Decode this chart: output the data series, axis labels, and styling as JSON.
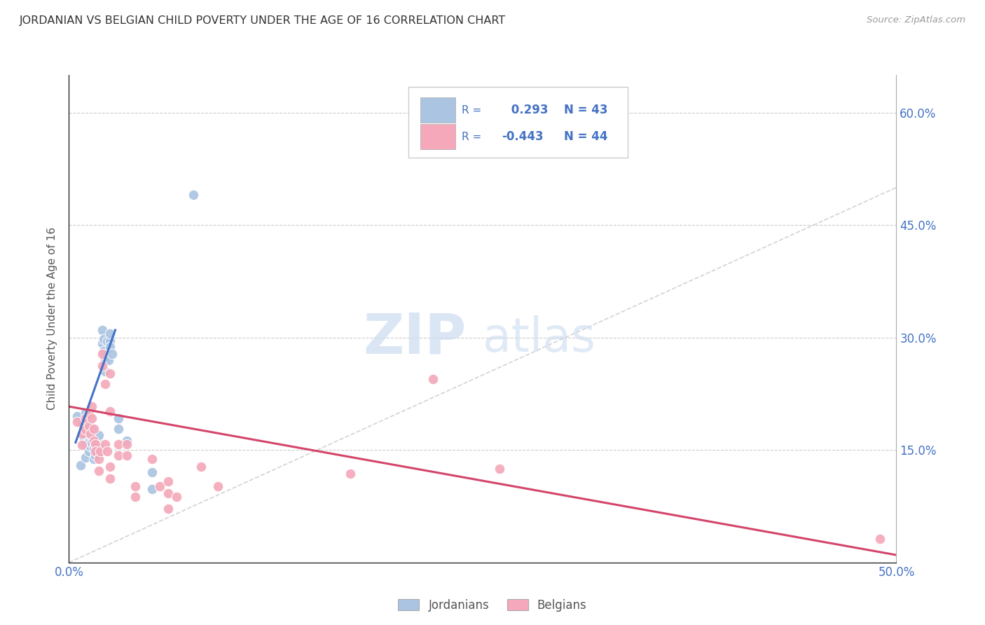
{
  "title": "JORDANIAN VS BELGIAN CHILD POVERTY UNDER THE AGE OF 16 CORRELATION CHART",
  "source": "Source: ZipAtlas.com",
  "ylabel": "Child Poverty Under the Age of 16",
  "xlim": [
    0.0,
    0.5
  ],
  "ylim": [
    0.0,
    0.65
  ],
  "xticks": [
    0.0,
    0.1,
    0.2,
    0.3,
    0.4,
    0.5
  ],
  "yticks": [
    0.15,
    0.3,
    0.45,
    0.6
  ],
  "ytick_labels": [
    "15.0%",
    "30.0%",
    "45.0%",
    "60.0%"
  ],
  "xtick_labels": [
    "0.0%",
    "",
    "",
    "",
    "",
    "50.0%"
  ],
  "jordan_color": "#aac4e2",
  "belgian_color": "#f4a8ba",
  "jordan_R": 0.293,
  "jordan_N": 43,
  "belgian_R": -0.443,
  "belgian_N": 44,
  "jordan_line_color": "#4472c4",
  "belgian_line_color": "#d4456a",
  "diagonal_color": "#c0c0c0",
  "watermark_ZIP": "ZIP",
  "watermark_atlas": "atlas",
  "background_color": "#ffffff",
  "tick_color": "#4472c4",
  "jordan_points": [
    [
      0.005,
      0.195
    ],
    [
      0.007,
      0.13
    ],
    [
      0.008,
      0.185
    ],
    [
      0.009,
      0.165
    ],
    [
      0.01,
      0.2
    ],
    [
      0.01,
      0.175
    ],
    [
      0.01,
      0.158
    ],
    [
      0.01,
      0.14
    ],
    [
      0.011,
      0.185
    ],
    [
      0.011,
      0.17
    ],
    [
      0.012,
      0.16
    ],
    [
      0.012,
      0.148
    ],
    [
      0.013,
      0.17
    ],
    [
      0.013,
      0.155
    ],
    [
      0.014,
      0.178
    ],
    [
      0.014,
      0.16
    ],
    [
      0.015,
      0.168
    ],
    [
      0.015,
      0.152
    ],
    [
      0.015,
      0.138
    ],
    [
      0.016,
      0.158
    ],
    [
      0.016,
      0.143
    ],
    [
      0.017,
      0.162
    ],
    [
      0.018,
      0.17
    ],
    [
      0.018,
      0.155
    ],
    [
      0.019,
      0.148
    ],
    [
      0.02,
      0.31
    ],
    [
      0.02,
      0.292
    ],
    [
      0.021,
      0.298
    ],
    [
      0.021,
      0.282
    ],
    [
      0.022,
      0.27
    ],
    [
      0.022,
      0.255
    ],
    [
      0.023,
      0.295
    ],
    [
      0.024,
      0.27
    ],
    [
      0.025,
      0.295
    ],
    [
      0.025,
      0.305
    ],
    [
      0.025,
      0.288
    ],
    [
      0.026,
      0.278
    ],
    [
      0.03,
      0.192
    ],
    [
      0.03,
      0.178
    ],
    [
      0.035,
      0.162
    ],
    [
      0.05,
      0.12
    ],
    [
      0.05,
      0.098
    ],
    [
      0.075,
      0.49
    ]
  ],
  "belgian_points": [
    [
      0.005,
      0.188
    ],
    [
      0.008,
      0.172
    ],
    [
      0.008,
      0.157
    ],
    [
      0.01,
      0.192
    ],
    [
      0.01,
      0.177
    ],
    [
      0.012,
      0.198
    ],
    [
      0.012,
      0.182
    ],
    [
      0.013,
      0.172
    ],
    [
      0.014,
      0.208
    ],
    [
      0.014,
      0.192
    ],
    [
      0.015,
      0.178
    ],
    [
      0.015,
      0.162
    ],
    [
      0.016,
      0.158
    ],
    [
      0.016,
      0.148
    ],
    [
      0.018,
      0.138
    ],
    [
      0.018,
      0.122
    ],
    [
      0.019,
      0.148
    ],
    [
      0.02,
      0.278
    ],
    [
      0.02,
      0.262
    ],
    [
      0.022,
      0.238
    ],
    [
      0.022,
      0.158
    ],
    [
      0.023,
      0.148
    ],
    [
      0.025,
      0.252
    ],
    [
      0.025,
      0.202
    ],
    [
      0.025,
      0.128
    ],
    [
      0.025,
      0.112
    ],
    [
      0.03,
      0.158
    ],
    [
      0.03,
      0.143
    ],
    [
      0.035,
      0.158
    ],
    [
      0.035,
      0.143
    ],
    [
      0.04,
      0.102
    ],
    [
      0.04,
      0.088
    ],
    [
      0.05,
      0.138
    ],
    [
      0.055,
      0.102
    ],
    [
      0.06,
      0.092
    ],
    [
      0.06,
      0.108
    ],
    [
      0.06,
      0.072
    ],
    [
      0.065,
      0.088
    ],
    [
      0.08,
      0.128
    ],
    [
      0.09,
      0.102
    ],
    [
      0.17,
      0.118
    ],
    [
      0.22,
      0.245
    ],
    [
      0.26,
      0.125
    ],
    [
      0.49,
      0.032
    ]
  ],
  "jordan_line_x": [
    0.004,
    0.028
  ],
  "jordan_line_y": [
    0.16,
    0.31
  ],
  "belgian_line_x": [
    0.0,
    0.5
  ],
  "belgian_line_y": [
    0.208,
    0.01
  ]
}
